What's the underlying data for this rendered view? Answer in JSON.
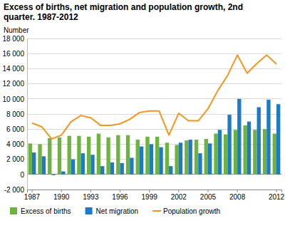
{
  "chart_data": {
    "type": "bar",
    "title": "Excess of births, net migration and population growth, 2nd quarter. 1987-2012",
    "y_label": "Number",
    "categories": [
      "1987",
      null,
      null,
      "1990",
      null,
      null,
      "1993",
      null,
      null,
      "1996",
      null,
      null,
      "1999",
      null,
      null,
      "2002",
      null,
      null,
      "2005",
      null,
      null,
      "2008",
      null,
      null,
      null,
      "2012"
    ],
    "series": [
      {
        "name": "Excess of births",
        "type": "bar",
        "color": "#6cb33f",
        "values": [
          4100,
          4000,
          4800,
          4900,
          5100,
          5100,
          5000,
          5400,
          4900,
          5200,
          5200,
          4600,
          5000,
          5000,
          4200,
          3900,
          4500,
          4600,
          4700,
          5400,
          5300,
          5900,
          6500,
          5900,
          6000,
          5400
        ]
      },
      {
        "name": "Net migration",
        "type": "bar",
        "color": "#1f7ac4",
        "values": [
          2900,
          2400,
          -100,
          400,
          2000,
          2800,
          2600,
          1100,
          1600,
          1500,
          2200,
          3700,
          4000,
          3600,
          1100,
          4200,
          4600,
          2800,
          4100,
          5900,
          7900,
          10000,
          7000,
          8900,
          9900,
          9300
        ]
      },
      {
        "name": "Population growth",
        "type": "line",
        "color": "#f7941d",
        "values": [
          6800,
          6300,
          4700,
          5200,
          7000,
          7800,
          7500,
          6500,
          6500,
          6700,
          7300,
          8200,
          8400,
          8400,
          5200,
          8100,
          7100,
          7100,
          8700,
          11100,
          13100,
          15800,
          13400,
          14700,
          15800,
          14600
        ]
      }
    ],
    "ylim": [
      -2000,
      18000
    ],
    "yticks": [
      {
        "value": -2000,
        "label": "-2 000"
      },
      0,
      {
        "value": 2000,
        "label": "2 000"
      },
      {
        "value": 4000,
        "label": "4 000"
      },
      {
        "value": 6000,
        "label": "6 000"
      },
      {
        "value": 8000,
        "label": "8 000"
      },
      {
        "value": 10000,
        "label": "10 000"
      },
      {
        "value": 12000,
        "label": "12 000"
      },
      {
        "value": 14000,
        "label": "14 000"
      },
      {
        "value": 16000,
        "label": "16 000"
      },
      {
        "value": 18000,
        "label": "18 000"
      }
    ],
    "grid": true,
    "legend": "bottom"
  }
}
